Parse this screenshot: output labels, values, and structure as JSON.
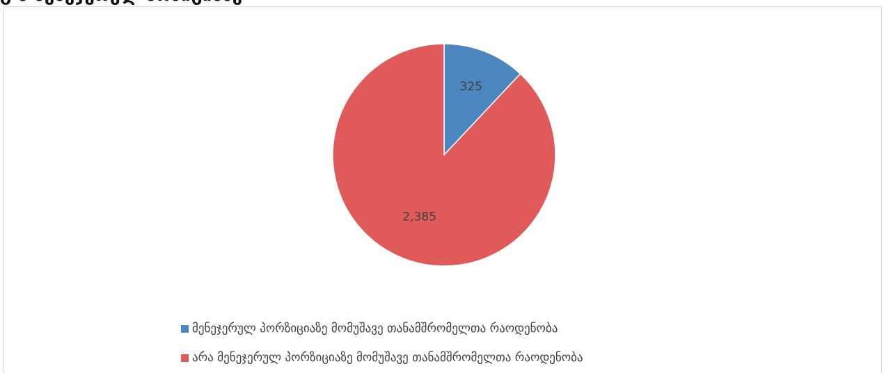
{
  "header": {
    "cutoff_heading": "გ  მ  მენეჯერულ  პოზიციაზე"
  },
  "colors": {
    "series_a": "#4b86bf",
    "series_b": "#e05a5a",
    "border": "#d9d9d9"
  },
  "chart_data": {
    "type": "pie",
    "slices": [
      {
        "label": "მენეჯერულ პორზიციაზე მომუშავე თანამშრომელთა რაოდენობა",
        "value": 325,
        "display": "325"
      },
      {
        "label": "არა მენეჯერულ პორზიციაზე მომუშავე თანამშრომელთა რაოდენობა",
        "value": 2385,
        "display": "2,385"
      }
    ],
    "legend_position": "bottom",
    "start_angle": "top, clockwise"
  }
}
